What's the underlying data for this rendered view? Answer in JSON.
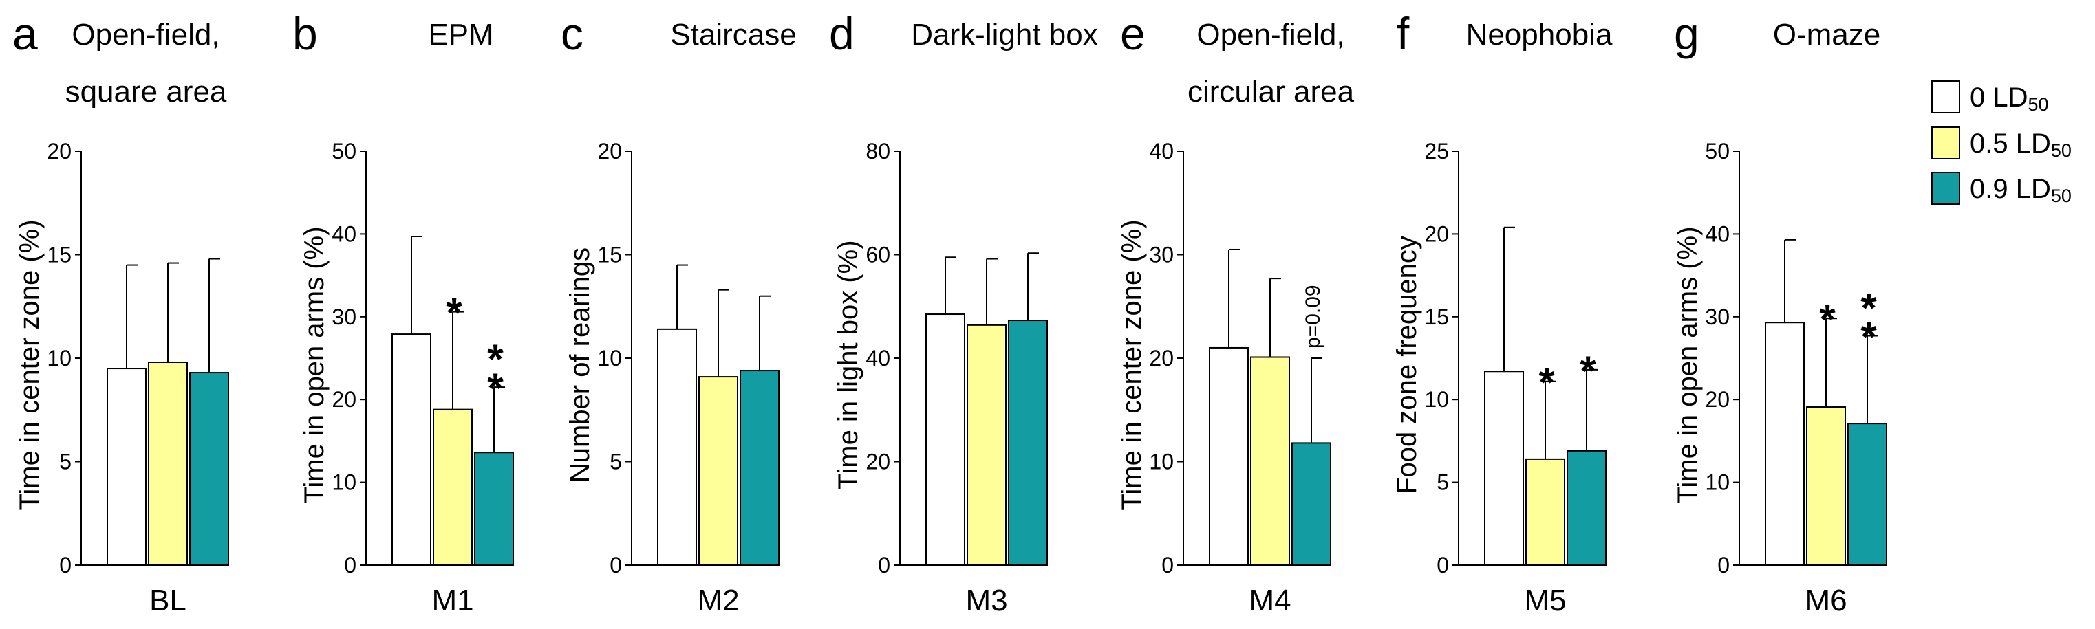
{
  "legend": {
    "entries": [
      {
        "main": "0 LD",
        "sub": "50",
        "color": "#ffffff"
      },
      {
        "main": "0.5 LD",
        "sub": "50",
        "color": "#ffff99"
      },
      {
        "main": "0.9 LD",
        "sub": "50",
        "color": "#139ca1"
      }
    ]
  },
  "chart_data": [
    {
      "type": "bar",
      "panel": "a",
      "title": [
        "Open-field,",
        "square area"
      ],
      "ylabel": "Time in center zone (%)",
      "xlabel": "BL",
      "ylim": [
        0,
        20
      ],
      "yticks": [
        0,
        5,
        10,
        15,
        20
      ],
      "series": [
        {
          "name": "0 LD50",
          "value": 9.5,
          "error": 5.0,
          "sig": ""
        },
        {
          "name": "0.5 LD50",
          "value": 9.8,
          "error": 4.8,
          "sig": ""
        },
        {
          "name": "0.9 LD50",
          "value": 9.3,
          "error": 5.5,
          "sig": ""
        }
      ],
      "annotation": ""
    },
    {
      "type": "bar",
      "panel": "b",
      "title": [
        "EPM"
      ],
      "ylabel": "Time in open arms (%)",
      "xlabel": "M1",
      "ylim": [
        0,
        50
      ],
      "yticks": [
        0,
        10,
        20,
        30,
        40,
        50
      ],
      "series": [
        {
          "name": "0 LD50",
          "value": 27.9,
          "error": 11.8,
          "sig": ""
        },
        {
          "name": "0.5 LD50",
          "value": 18.8,
          "error": 11.8,
          "sig": "*"
        },
        {
          "name": "0.9 LD50",
          "value": 13.6,
          "error": 7.9,
          "sig": "**"
        }
      ],
      "annotation": ""
    },
    {
      "type": "bar",
      "panel": "c",
      "title": [
        "Staircase"
      ],
      "ylabel": "Number of rearings",
      "xlabel": "M2",
      "ylim": [
        0,
        20
      ],
      "yticks": [
        0,
        5,
        10,
        15,
        20
      ],
      "series": [
        {
          "name": "0 LD50",
          "value": 11.4,
          "error": 3.1,
          "sig": ""
        },
        {
          "name": "0.5 LD50",
          "value": 9.1,
          "error": 4.2,
          "sig": ""
        },
        {
          "name": "0.9 LD50",
          "value": 9.4,
          "error": 3.6,
          "sig": ""
        }
      ],
      "annotation": ""
    },
    {
      "type": "bar",
      "panel": "d",
      "title": [
        "Dark-light box"
      ],
      "ylabel": "Time in light box (%)",
      "xlabel": "M3",
      "ylim": [
        0,
        80
      ],
      "yticks": [
        0,
        20,
        40,
        60,
        80
      ],
      "series": [
        {
          "name": "0 LD50",
          "value": 48.5,
          "error": 11.0,
          "sig": ""
        },
        {
          "name": "0.5 LD50",
          "value": 46.4,
          "error": 12.8,
          "sig": ""
        },
        {
          "name": "0.9 LD50",
          "value": 47.3,
          "error": 13.0,
          "sig": ""
        }
      ],
      "annotation": ""
    },
    {
      "type": "bar",
      "panel": "e",
      "title": [
        "Open-field,",
        "circular area"
      ],
      "ylabel": "Time in center zone (%)",
      "xlabel": "M4",
      "ylim": [
        0,
        40
      ],
      "yticks": [
        0,
        10,
        20,
        30,
        40
      ],
      "series": [
        {
          "name": "0 LD50",
          "value": 21.0,
          "error": 9.5,
          "sig": ""
        },
        {
          "name": "0.5 LD50",
          "value": 20.1,
          "error": 7.6,
          "sig": ""
        },
        {
          "name": "0.9 LD50",
          "value": 11.8,
          "error": 8.2,
          "sig": ""
        }
      ],
      "annotation": "p=0.09"
    },
    {
      "type": "bar",
      "panel": "f",
      "title": [
        "Neophobia"
      ],
      "ylabel": "Food zone frequency",
      "xlabel": "M5",
      "ylim": [
        0,
        25
      ],
      "yticks": [
        0,
        5,
        10,
        15,
        20,
        25
      ],
      "series": [
        {
          "name": "0 LD50",
          "value": 11.7,
          "error": 8.7,
          "sig": ""
        },
        {
          "name": "0.5 LD50",
          "value": 6.4,
          "error": 4.7,
          "sig": "*"
        },
        {
          "name": "0.9 LD50",
          "value": 6.9,
          "error": 4.9,
          "sig": "*"
        }
      ],
      "annotation": ""
    },
    {
      "type": "bar",
      "panel": "g",
      "title": [
        "O-maze"
      ],
      "ylabel": "Time in open arms (%)",
      "xlabel": "M6",
      "ylim": [
        0,
        50
      ],
      "yticks": [
        0,
        10,
        20,
        30,
        40,
        50
      ],
      "series": [
        {
          "name": "0 LD50",
          "value": 29.3,
          "error": 10.0,
          "sig": ""
        },
        {
          "name": "0.5 LD50",
          "value": 19.1,
          "error": 10.7,
          "sig": "*"
        },
        {
          "name": "0.9 LD50",
          "value": 17.1,
          "error": 10.6,
          "sig": "**"
        }
      ],
      "annotation": ""
    }
  ]
}
